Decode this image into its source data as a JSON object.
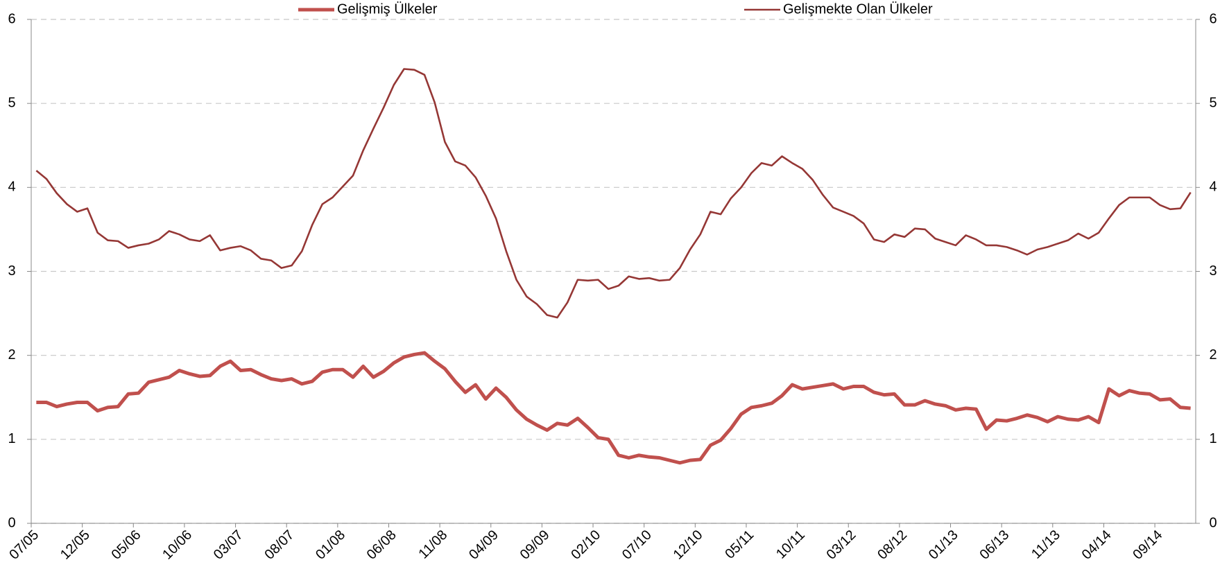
{
  "chart_data": {
    "type": "line",
    "categories": [
      "07/05",
      null,
      null,
      null,
      null,
      "12/05",
      null,
      null,
      null,
      null,
      "05/06",
      null,
      null,
      null,
      null,
      "10/06",
      null,
      null,
      null,
      null,
      "03/07",
      null,
      null,
      null,
      null,
      "08/07",
      null,
      null,
      null,
      null,
      "01/08",
      null,
      null,
      null,
      null,
      "06/08",
      null,
      null,
      null,
      null,
      "11/08",
      null,
      null,
      null,
      null,
      "04/09",
      null,
      null,
      null,
      null,
      "09/09",
      null,
      null,
      null,
      null,
      "02/10",
      null,
      null,
      null,
      null,
      "07/10",
      null,
      null,
      null,
      null,
      "12/10",
      null,
      null,
      null,
      null,
      "05/11",
      null,
      null,
      null,
      null,
      "10/11",
      null,
      null,
      null,
      null,
      "03/12",
      null,
      null,
      null,
      null,
      "08/12",
      null,
      null,
      null,
      null,
      "01/13",
      null,
      null,
      null,
      null,
      "06/13",
      null,
      null,
      null,
      null,
      "11/13",
      null,
      null,
      null,
      null,
      "04/14",
      null,
      null,
      null,
      null,
      "09/14",
      null,
      null,
      null
    ],
    "series": [
      {
        "name": "Gelişmiş Ülkeler",
        "color": "#c0504d",
        "values": [
          1.44,
          1.44,
          1.39,
          1.42,
          1.44,
          1.44,
          1.34,
          1.38,
          1.39,
          1.54,
          1.55,
          1.68,
          1.71,
          1.74,
          1.82,
          1.78,
          1.75,
          1.76,
          1.87,
          1.93,
          1.82,
          1.83,
          1.77,
          1.72,
          1.7,
          1.72,
          1.66,
          1.69,
          1.8,
          1.83,
          1.83,
          1.74,
          1.87,
          1.74,
          1.81,
          1.91,
          1.98,
          2.01,
          2.03,
          1.93,
          1.84,
          1.69,
          1.56,
          1.65,
          1.48,
          1.61,
          1.5,
          1.35,
          1.24,
          1.17,
          1.11,
          1.19,
          1.17,
          1.25,
          1.14,
          1.02,
          1.0,
          0.81,
          0.78,
          0.81,
          0.79,
          0.78,
          0.75,
          0.72,
          0.75,
          0.76,
          0.93,
          0.99,
          1.13,
          1.3,
          1.38,
          1.4,
          1.43,
          1.52,
          1.65,
          1.6,
          1.62,
          1.64,
          1.66,
          1.6,
          1.63,
          1.63,
          1.56,
          1.53,
          1.54,
          1.41,
          1.41,
          1.46,
          1.42,
          1.4,
          1.35,
          1.37,
          1.36,
          1.12,
          1.23,
          1.22,
          1.25,
          1.29,
          1.26,
          1.21,
          1.27,
          1.24,
          1.23,
          1.27,
          1.2,
          1.6,
          1.52,
          1.58,
          1.55,
          1.54,
          1.47,
          1.48,
          1.38,
          1.37
        ]
      },
      {
        "name": "Gelişmekte Olan Ülkeler",
        "color": "#953735",
        "axis": "y2",
        "values": [
          4.2,
          4.1,
          3.93,
          3.8,
          3.71,
          3.75,
          3.46,
          3.37,
          3.36,
          3.28,
          3.31,
          3.33,
          3.38,
          3.48,
          3.44,
          3.38,
          3.36,
          3.43,
          3.25,
          3.28,
          3.3,
          3.25,
          3.15,
          3.13,
          3.04,
          3.07,
          3.24,
          3.55,
          3.8,
          3.88,
          4.01,
          4.14,
          4.44,
          4.7,
          4.95,
          5.22,
          5.41,
          5.4,
          5.34,
          5.01,
          4.54,
          4.31,
          4.26,
          4.12,
          3.9,
          3.63,
          3.24,
          2.9,
          2.7,
          2.61,
          2.48,
          2.45,
          2.63,
          2.9,
          2.89,
          2.9,
          2.79,
          2.83,
          2.94,
          2.91,
          2.92,
          2.89,
          2.9,
          3.04,
          3.26,
          3.44,
          3.71,
          3.68,
          3.87,
          4.0,
          4.17,
          4.29,
          4.26,
          4.37,
          4.29,
          4.22,
          4.09,
          3.91,
          3.76,
          3.71,
          3.66,
          3.57,
          3.38,
          3.35,
          3.44,
          3.41,
          3.51,
          3.5,
          3.39,
          3.35,
          3.31,
          3.43,
          3.38,
          3.31,
          3.31,
          3.29,
          3.25,
          3.2,
          3.26,
          3.29,
          3.33,
          3.37,
          3.45,
          3.39,
          3.46,
          3.63,
          3.79,
          3.88,
          3.88,
          3.88,
          3.79,
          3.74,
          3.75,
          3.94
        ]
      }
    ],
    "ylim": [
      0,
      6
    ],
    "yticks": [
      0,
      1,
      2,
      3,
      4,
      5,
      6
    ],
    "y2lim": [
      0,
      6
    ],
    "y2ticks": [
      0,
      1,
      2,
      3,
      4,
      5,
      6
    ],
    "grid": true,
    "legend": "top"
  }
}
